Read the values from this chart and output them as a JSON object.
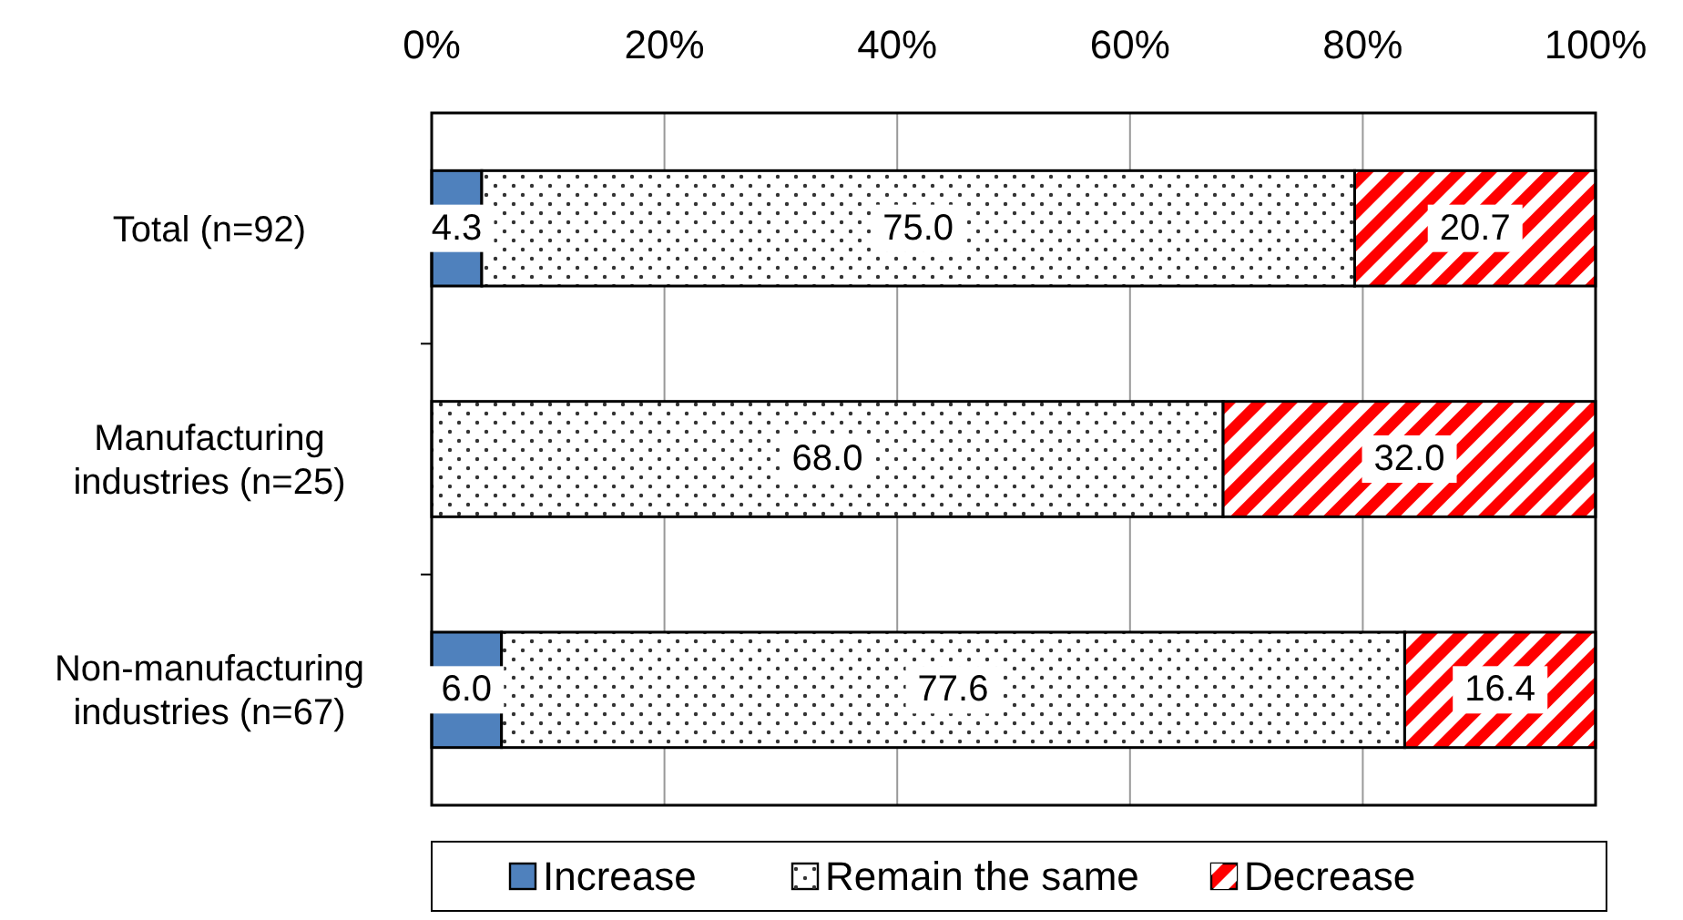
{
  "chart_data": {
    "type": "bar",
    "orientation": "horizontal",
    "stacked": true,
    "categories": [
      "Total (n=92)",
      "Manufacturing industries (n=25)",
      "Non-manufacturing industries (n=67)"
    ],
    "series": [
      {
        "name": "Increase",
        "color": "#4f81bd",
        "values": [
          4.3,
          0,
          6.0
        ],
        "value_labels": [
          "4.3",
          null,
          "6.0"
        ]
      },
      {
        "name": "Remain the same",
        "color": "#ffffff",
        "values": [
          75.0,
          68.0,
          77.6
        ],
        "value_labels": [
          "75.0",
          "68.0",
          "77.6"
        ]
      },
      {
        "name": "Decrease",
        "color": "#ff0000",
        "values": [
          20.7,
          32.0,
          16.4
        ],
        "value_labels": [
          "20.7",
          "32.0",
          "16.4"
        ]
      }
    ],
    "xlim": [
      0,
      100
    ],
    "xticks": [
      {
        "value": 0,
        "label": "0%"
      },
      {
        "value": 20,
        "label": "20%"
      },
      {
        "value": 40,
        "label": "40%"
      },
      {
        "value": 60,
        "label": "60%"
      },
      {
        "value": 80,
        "label": "80%"
      },
      {
        "value": 100,
        "label": "100%"
      }
    ],
    "grid": "x",
    "legend": "bottom"
  }
}
